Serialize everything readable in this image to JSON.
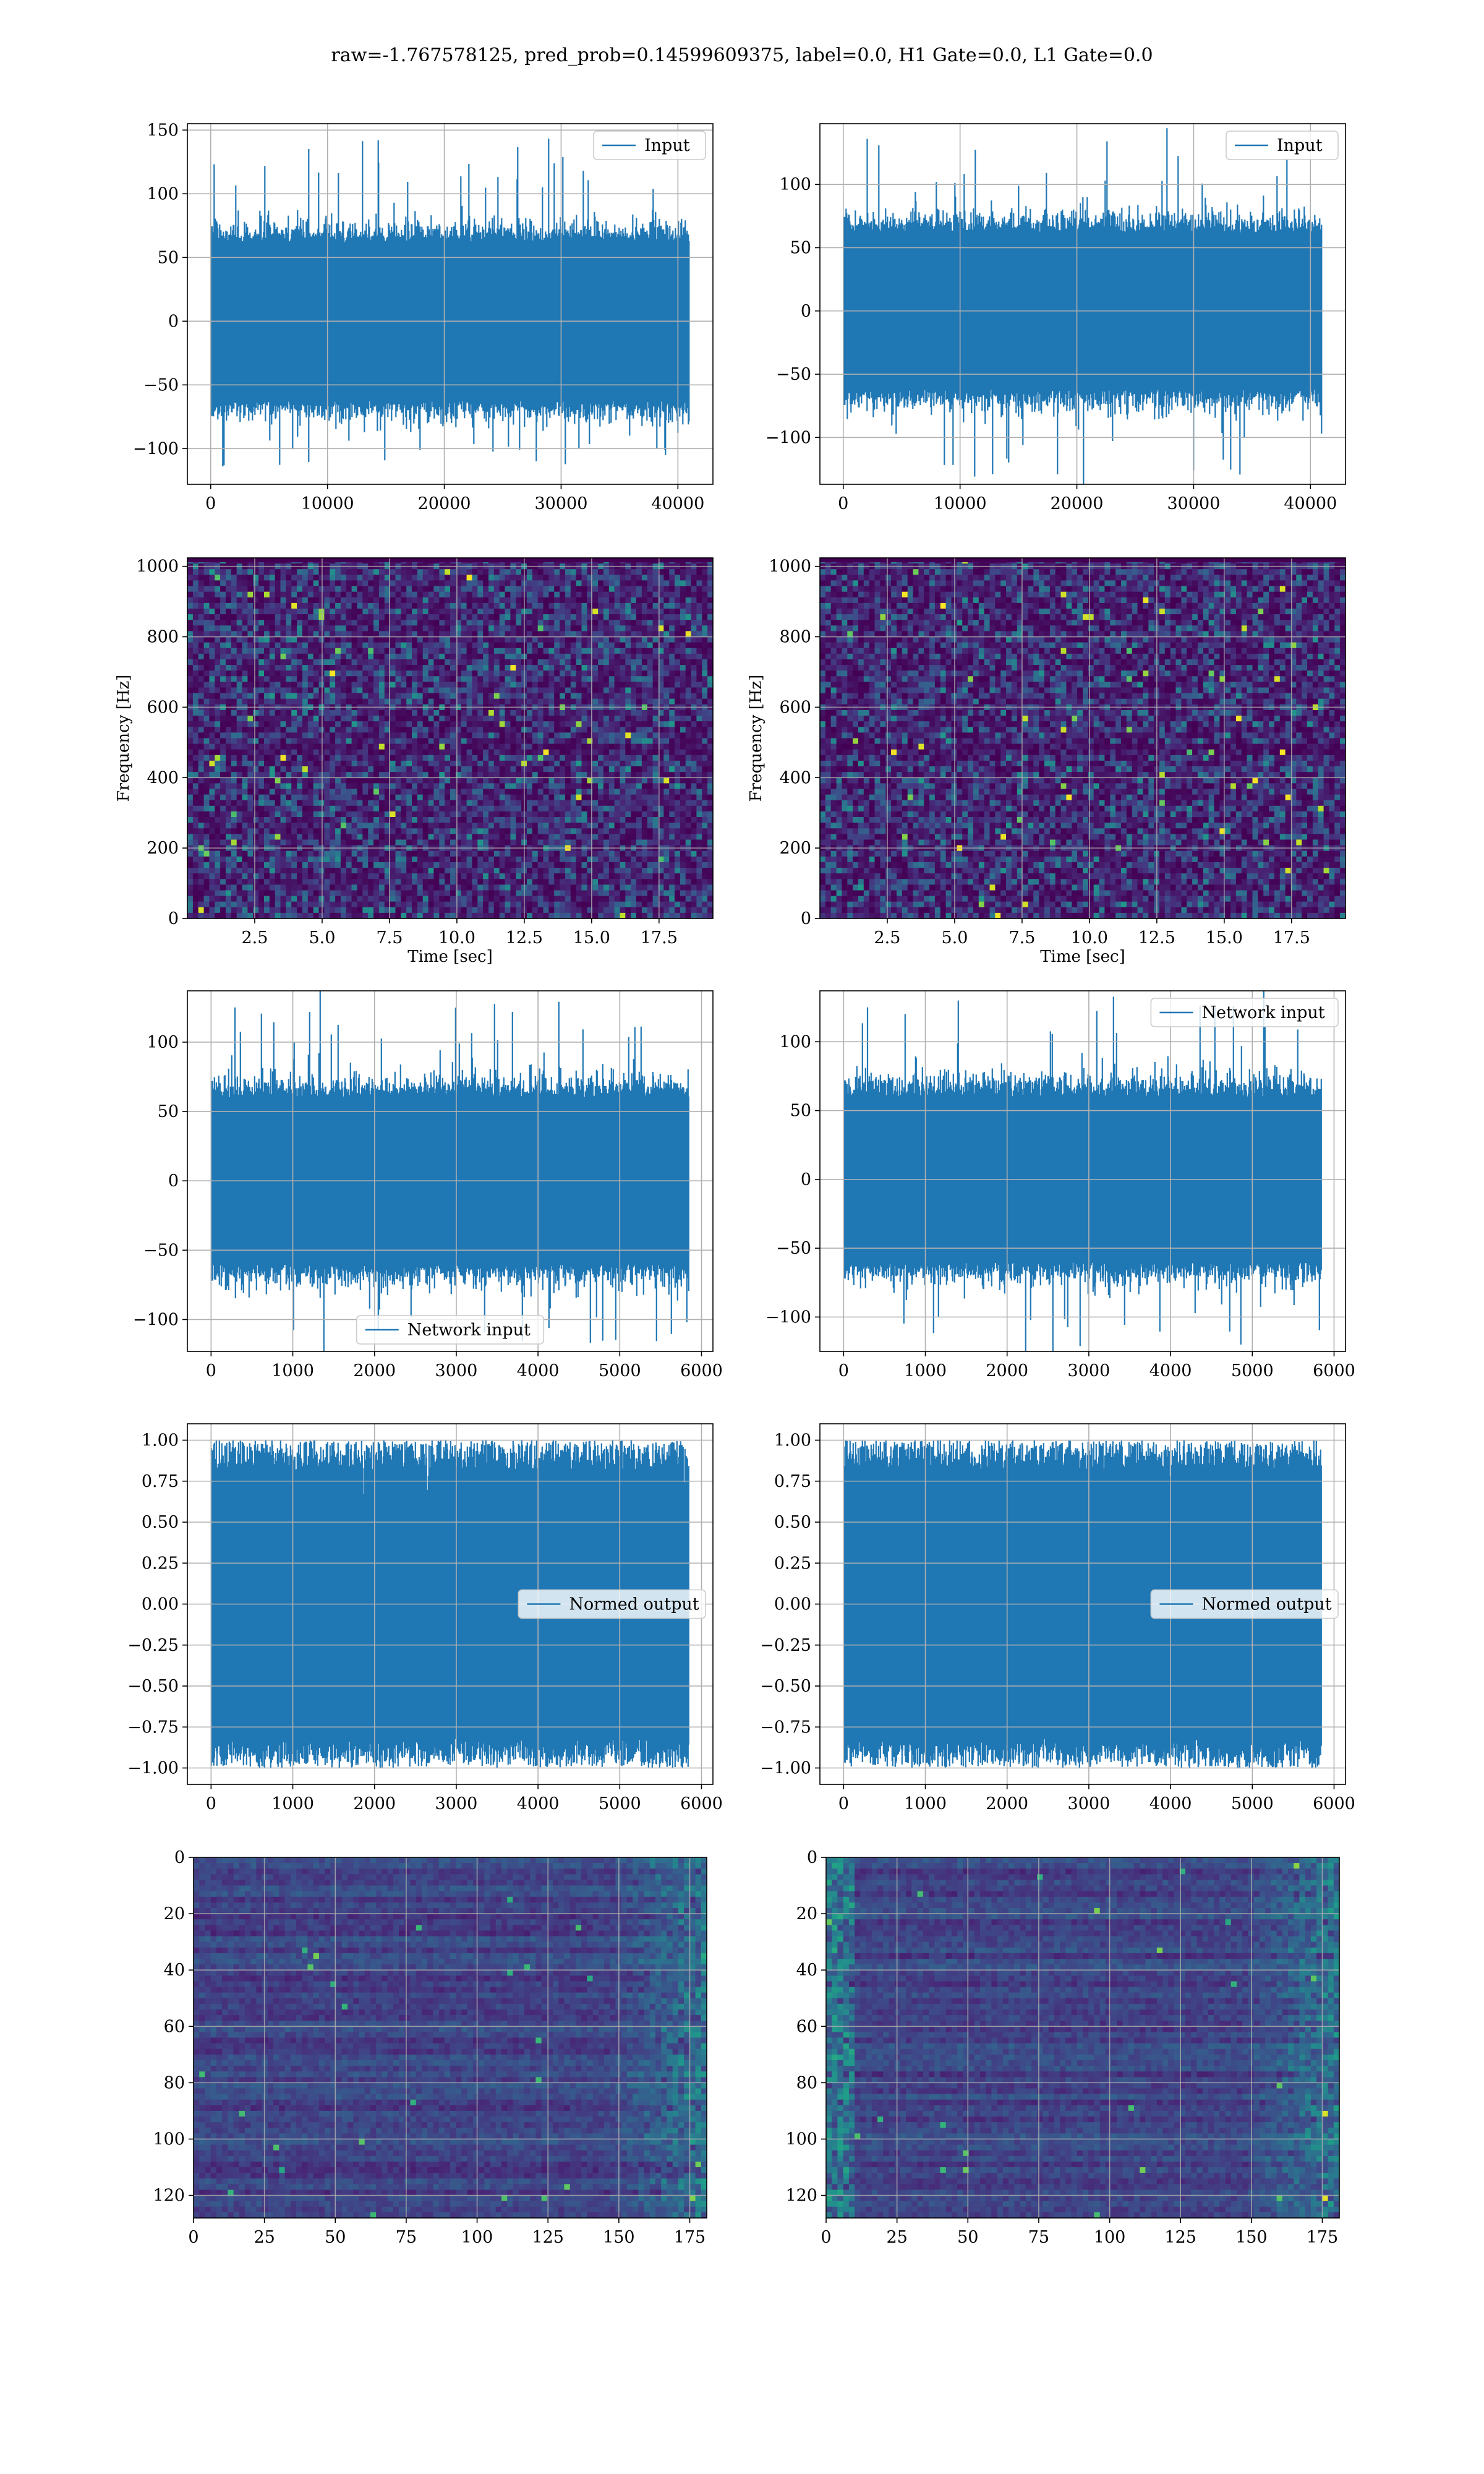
{
  "figure": {
    "title": "raw=-1.767578125, pred_prob=0.14599609375, label=0.0, H1 Gate=0.0, L1 Gate=0.0"
  },
  "colors": {
    "series": "#1f77b4",
    "grid": "#b0b0b0",
    "viridis_low": "#440154",
    "viridis_mid": "#21918c",
    "viridis_high": "#fde725"
  },
  "chart_data": [
    {
      "id": "raw-input-h1",
      "type": "line",
      "row": 0,
      "col": 0,
      "legend": "Input",
      "legend_loc": "upper right",
      "xlim": [
        -2000,
        43000
      ],
      "ylim": [
        -128,
        155
      ],
      "xticks": [
        0,
        10000,
        20000,
        30000,
        40000
      ],
      "yticks": [
        -100,
        -50,
        0,
        50,
        100,
        150
      ],
      "xlabel": "",
      "ylabel": "",
      "signal": {
        "n": 40960,
        "x_start": 0,
        "x_end": 40960,
        "core": 62,
        "spike_max": 142,
        "spike_min": -110
      }
    },
    {
      "id": "raw-input-l1",
      "type": "line",
      "row": 0,
      "col": 1,
      "legend": "Input",
      "legend_loc": "upper right",
      "xlim": [
        -2000,
        43000
      ],
      "ylim": [
        -137,
        148
      ],
      "xticks": [
        0,
        10000,
        20000,
        30000,
        40000
      ],
      "yticks": [
        -100,
        -50,
        0,
        50,
        100
      ],
      "xlabel": "",
      "ylabel": "",
      "signal": {
        "n": 40960,
        "x_start": 0,
        "x_end": 40960,
        "core": 62,
        "spike_max": 136,
        "spike_min": -123
      }
    },
    {
      "id": "spectrogram-h1",
      "type": "heatmap",
      "row": 1,
      "col": 0,
      "xlim": [
        0,
        19.5
      ],
      "ylim": [
        0,
        1024
      ],
      "xticks": [
        2.5,
        5.0,
        7.5,
        10.0,
        12.5,
        15.0,
        17.5
      ],
      "yticks": [
        0,
        200,
        400,
        600,
        800,
        1000
      ],
      "xlabel": "Time [sec]",
      "ylabel": "Frequency [Hz]",
      "colormap": "viridis"
    },
    {
      "id": "spectrogram-l1",
      "type": "heatmap",
      "row": 1,
      "col": 1,
      "xlim": [
        0,
        19.5
      ],
      "ylim": [
        0,
        1024
      ],
      "xticks": [
        2.5,
        5.0,
        7.5,
        10.0,
        12.5,
        15.0,
        17.5
      ],
      "yticks": [
        0,
        200,
        400,
        600,
        800,
        1000
      ],
      "xlabel": "Time [sec]",
      "ylabel": "Frequency [Hz]",
      "colormap": "viridis"
    },
    {
      "id": "network-input-h1",
      "type": "line",
      "row": 2,
      "col": 0,
      "legend": "Network input",
      "legend_loc": "lower center",
      "xlim": [
        -290,
        6140
      ],
      "ylim": [
        -123,
        137
      ],
      "xticks": [
        0,
        1000,
        2000,
        3000,
        4000,
        5000,
        6000
      ],
      "yticks": [
        -100,
        -50,
        0,
        50,
        100
      ],
      "xlabel": "",
      "ylabel": "",
      "signal": {
        "n": 5850,
        "x_start": 0,
        "x_end": 5850,
        "core": 60,
        "spike_max": 125,
        "spike_min": -112
      }
    },
    {
      "id": "network-input-l1",
      "type": "line",
      "row": 2,
      "col": 1,
      "legend": "Network input",
      "legend_loc": "upper right",
      "xlim": [
        -290,
        6140
      ],
      "ylim": [
        -125,
        137
      ],
      "xticks": [
        0,
        1000,
        2000,
        3000,
        4000,
        5000,
        6000
      ],
      "yticks": [
        -100,
        -50,
        0,
        50,
        100
      ],
      "xlabel": "",
      "ylabel": "",
      "signal": {
        "n": 5850,
        "x_start": 0,
        "x_end": 5850,
        "core": 60,
        "spike_max": 125,
        "spike_min": -115
      }
    },
    {
      "id": "normed-output-h1",
      "type": "line",
      "row": 3,
      "col": 0,
      "legend": "Normed output",
      "legend_loc": "center right",
      "xlim": [
        -290,
        6140
      ],
      "ylim": [
        -1.1,
        1.1
      ],
      "xticks": [
        0,
        1000,
        2000,
        3000,
        4000,
        5000,
        6000
      ],
      "yticks": [
        -1.0,
        -0.75,
        -0.5,
        -0.25,
        0.0,
        0.25,
        0.5,
        0.75,
        1.0
      ],
      "xlabel": "",
      "ylabel": "",
      "signal": {
        "n": 5850,
        "x_start": 0,
        "x_end": 5850,
        "normed": true
      }
    },
    {
      "id": "normed-output-l1",
      "type": "line",
      "row": 3,
      "col": 1,
      "legend": "Normed output",
      "legend_loc": "center right",
      "xlim": [
        -290,
        6140
      ],
      "ylim": [
        -1.1,
        1.1
      ],
      "xticks": [
        0,
        1000,
        2000,
        3000,
        4000,
        5000,
        6000
      ],
      "yticks": [
        -1.0,
        -0.75,
        -0.5,
        -0.25,
        0.0,
        0.25,
        0.5,
        0.75,
        1.0
      ],
      "xlabel": "",
      "ylabel": "",
      "signal": {
        "n": 5850,
        "x_start": 0,
        "x_end": 5850,
        "normed": true
      }
    },
    {
      "id": "feature-map-h1",
      "type": "heatmap",
      "row": 4,
      "col": 0,
      "xlim": [
        0,
        181
      ],
      "ylim": [
        128,
        0
      ],
      "xticks": [
        0,
        25,
        50,
        75,
        100,
        125,
        150,
        175
      ],
      "yticks": [
        0,
        20,
        40,
        60,
        80,
        100,
        120
      ],
      "xlabel": "",
      "ylabel": "",
      "colormap": "viridis"
    },
    {
      "id": "feature-map-l1",
      "type": "heatmap",
      "row": 4,
      "col": 1,
      "xlim": [
        0,
        181
      ],
      "ylim": [
        128,
        0
      ],
      "xticks": [
        0,
        25,
        50,
        75,
        100,
        125,
        150,
        175
      ],
      "yticks": [
        0,
        20,
        40,
        60,
        80,
        100,
        120
      ],
      "xlabel": "",
      "ylabel": "",
      "colormap": "viridis"
    }
  ]
}
